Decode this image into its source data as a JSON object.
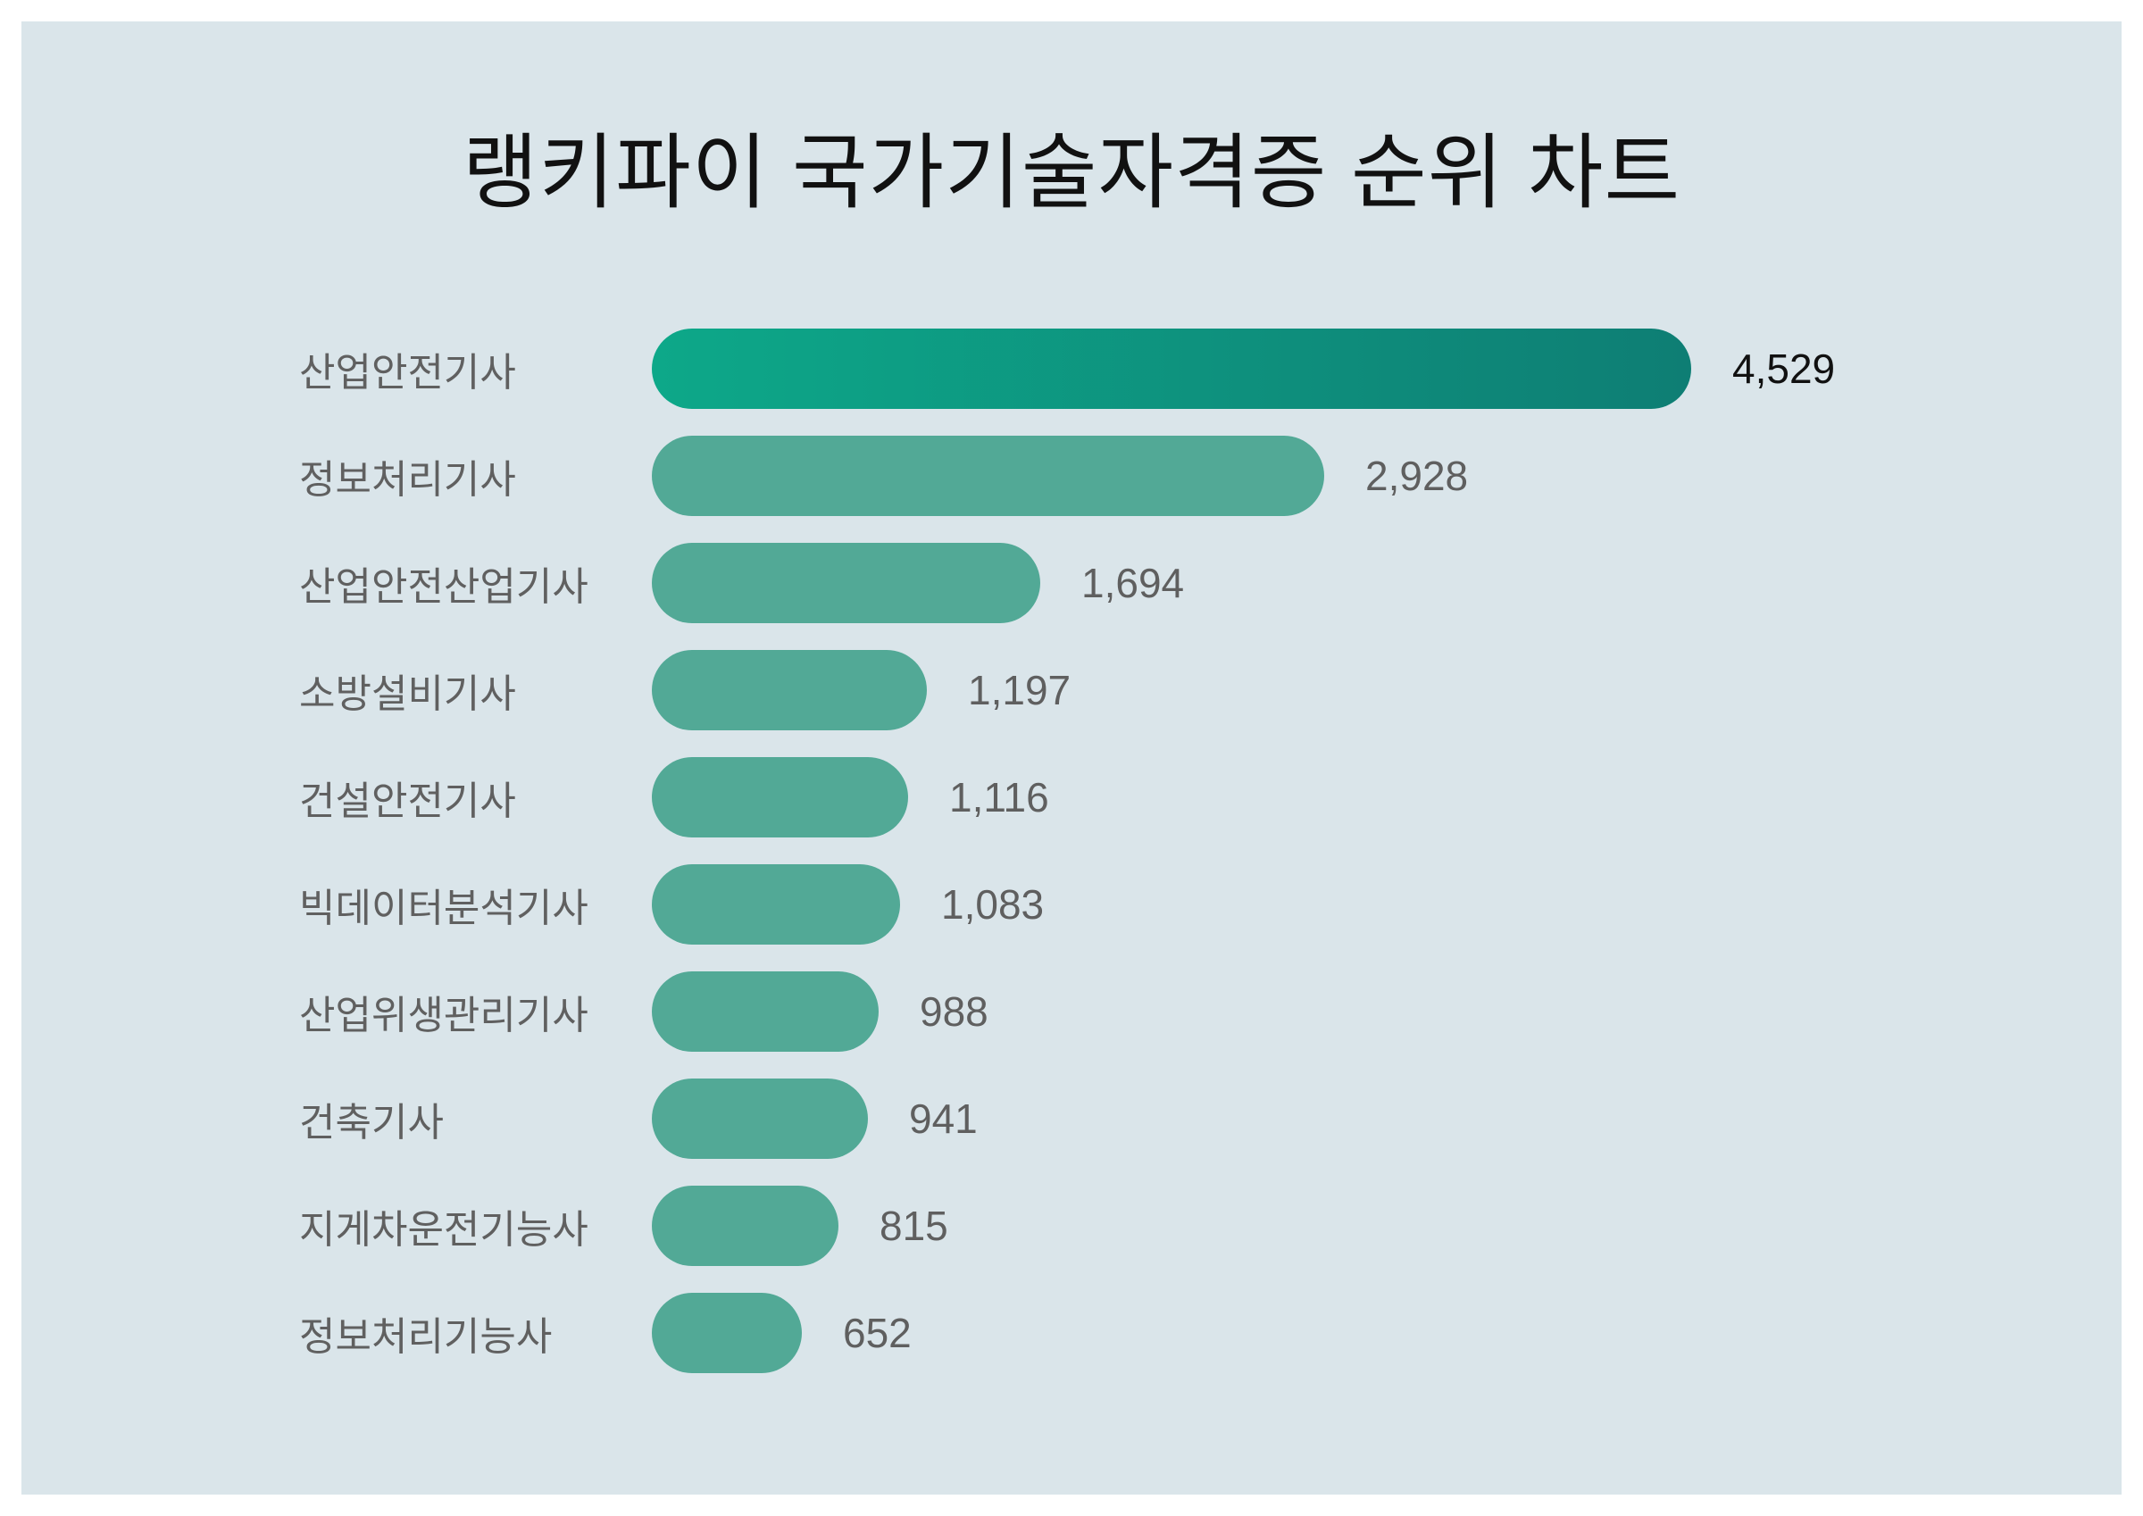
{
  "title": "랭키파이 국가기술자격증 순위 차트",
  "colors": {
    "canvas": "#ffffff",
    "panel_background": "#dae5ea",
    "bar_default": "#52a996",
    "bar_top_gradient_start": "#0da889",
    "bar_top_gradient_end": "#0e7e74",
    "title_text": "#111111",
    "label_text": "#606060",
    "value_text": "#5f5f5f",
    "value_text_top": "#111111"
  },
  "chart_data": {
    "type": "bar",
    "orientation": "horizontal",
    "title": "랭키파이 국가기술자격증 순위 차트",
    "categories": [
      "산업안전기사",
      "정보처리기사",
      "산업안전산업기사",
      "소방설비기사",
      "건설안전기사",
      "빅데이터분석기사",
      "산업위생관리기사",
      "건축기사",
      "지게차운전기능사",
      "정보처리기능사"
    ],
    "values": [
      4529,
      2928,
      1694,
      1197,
      1116,
      1083,
      988,
      941,
      815,
      652
    ],
    "value_labels": [
      "4,529",
      "2,928",
      "1,694",
      "1,197",
      "1,116",
      "1,083",
      "988",
      "941",
      "815",
      "652"
    ],
    "xlabel": "",
    "ylabel": "",
    "xlim": [
      0,
      4529
    ],
    "grid": false,
    "legend": null,
    "value_label_position": "right-of-bar",
    "highlight_index": 0
  }
}
